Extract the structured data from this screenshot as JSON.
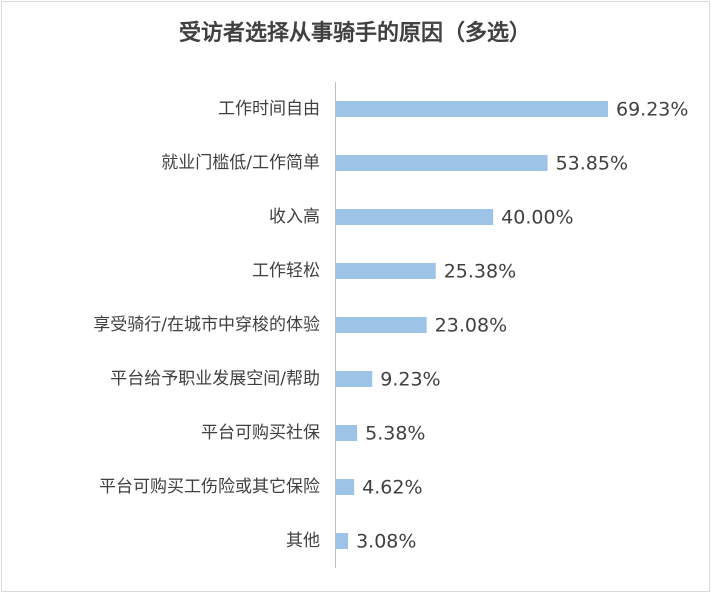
{
  "chart_data": {
    "type": "bar",
    "orientation": "horizontal",
    "title": "受访者选择从事骑手的原因（多选）",
    "categories": [
      "工作时间自由",
      "就业门槛低/工作简单",
      "收入高",
      "工作轻松",
      "享受骑行/在城市中穿梭的体验",
      "平台给予职业发展空间/帮助",
      "平台可购买社保",
      "平台可购买工伤险或其它保险",
      "其他"
    ],
    "values": [
      69.23,
      53.85,
      40.0,
      25.38,
      23.08,
      9.23,
      5.38,
      4.62,
      3.08
    ],
    "value_labels": [
      "69.23%",
      "53.85%",
      "40.00%",
      "25.38%",
      "23.08%",
      "9.23%",
      "5.38%",
      "4.62%",
      "3.08%"
    ],
    "color": "#9dc3e6"
  }
}
